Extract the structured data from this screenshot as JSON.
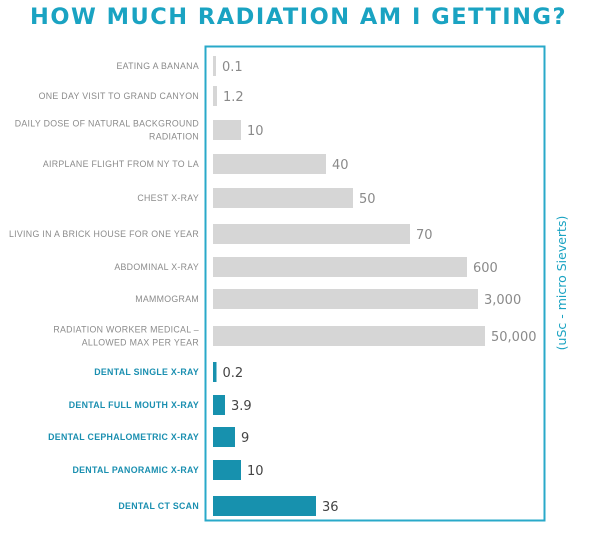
{
  "chart_data": {
    "type": "bar",
    "orientation": "horizontal",
    "title": "HOW MUCH RADIATION AM I GETTING?",
    "unit_label": "(uSc - micro Sieverts)",
    "categories": [
      "EATING A BANANA",
      "ONE DAY VISIT TO GRAND CANYON",
      "DAILY DOSE OF NATURAL BACKGROUND RADIATION",
      "AIRPLANE FLIGHT FROM NY TO LA",
      "CHEST X-RAY",
      "LIVING IN A BRICK HOUSE FOR ONE YEAR",
      "ABDOMINAL X-RAY",
      "MAMMOGRAM",
      "RADIATION WORKER MEDICAL – ALLOWED MAX PER YEAR",
      "DENTAL SINGLE X-RAY",
      "DENTAL FULL MOUTH X-RAY",
      "DENTAL CEPHALOMETRIC X-RAY",
      "DENTAL PANORAMIC X-RAY",
      "DENTAL CT SCAN"
    ],
    "label_lines": [
      [
        "EATING A BANANA"
      ],
      [
        "ONE DAY VISIT TO GRAND CANYON"
      ],
      [
        "DAILY DOSE OF NATURAL BACKGROUND",
        "RADIATION"
      ],
      [
        "AIRPLANE FLIGHT FROM NY TO LA"
      ],
      [
        "CHEST X-RAY"
      ],
      [
        "LIVING IN A BRICK HOUSE FOR ONE YEAR"
      ],
      [
        "ABDOMINAL X-RAY"
      ],
      [
        "MAMMOGRAM"
      ],
      [
        "RADIATION WORKER MEDICAL –",
        "ALLOWED MAX PER YEAR"
      ],
      [
        "DENTAL SINGLE X-RAY"
      ],
      [
        "DENTAL FULL MOUTH X-RAY"
      ],
      [
        "DENTAL CEPHALOMETRIC X-RAY"
      ],
      [
        "DENTAL PANORAMIC X-RAY"
      ],
      [
        "DENTAL CT SCAN"
      ]
    ],
    "values": [
      0.1,
      1.2,
      10,
      40,
      50,
      70,
      600,
      3000,
      50000,
      0.2,
      3.9,
      9,
      10,
      36
    ],
    "value_labels": [
      "0.1",
      "1.2",
      "10",
      "40",
      "50",
      "70",
      "600",
      "3,000",
      "50,000",
      "0.2",
      "3.9",
      "9",
      "10",
      "36"
    ],
    "groups": [
      "general",
      "general",
      "general",
      "general",
      "general",
      "general",
      "general",
      "general",
      "general",
      "dental",
      "dental",
      "dental",
      "dental",
      "dental"
    ],
    "scale": "non-linear (bar lengths not proportional to values)",
    "grid": false,
    "colors": {
      "title": "#1aa3c2",
      "frame": "#29a9c9",
      "general_bar": "#d6d6d6",
      "dental_bar": "#1791ae",
      "general_label": "#8b8b8b",
      "dental_label": "#1a8fb0",
      "unit_label": "#1aa3c2"
    }
  }
}
